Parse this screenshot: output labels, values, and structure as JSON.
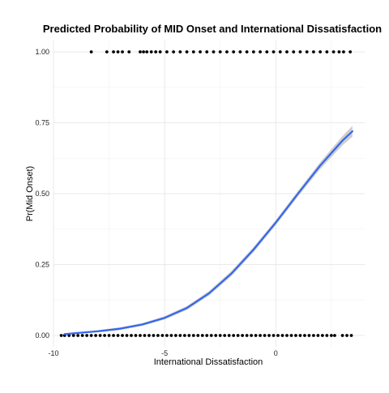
{
  "chart_data": {
    "type": "scatter",
    "title": "Predicted Probability of MID Onset and International Dissatisfaction",
    "xlabel": "International Dissatisfaction",
    "ylabel": "Pr(Mid Onset)",
    "xlim": [
      -10,
      4
    ],
    "ylim": [
      -0.04,
      1.04
    ],
    "x_ticks": [
      -10,
      -5,
      0
    ],
    "x_tick_labels": [
      "-10",
      "-5",
      "0"
    ],
    "y_ticks": [
      0,
      0.25,
      0.5,
      0.75,
      1
    ],
    "y_tick_labels": [
      "0.00",
      "0.25",
      "0.50",
      "0.75",
      "1.00"
    ],
    "grid": true,
    "legend": "none",
    "series": [
      {
        "kind": "points",
        "color": "#000000",
        "y_value": 1,
        "x": [
          -8.3,
          -7.6,
          -7.3,
          -7.1,
          -6.9,
          -6.6,
          -6.1,
          -5.95,
          -5.8,
          -5.6,
          -5.4,
          -5.2,
          -4.9,
          -4.6,
          -4.3,
          -4.0,
          -3.7,
          -3.4,
          -3.1,
          -2.8,
          -2.5,
          -2.2,
          -1.9,
          -1.6,
          -1.3,
          -1.0,
          -0.7,
          -0.4,
          -0.1,
          0.2,
          0.5,
          0.8,
          1.1,
          1.4,
          1.7,
          2.0,
          2.3,
          2.6,
          2.85,
          3.05,
          3.35
        ]
      },
      {
        "kind": "points",
        "color": "#000000",
        "y_value": 0,
        "x": [
          -9.65,
          -9.5,
          -9.3,
          -9.1,
          -8.9,
          -8.7,
          -8.5,
          -8.3,
          -8.1,
          -7.9,
          -7.7,
          -7.5,
          -7.3,
          -7.1,
          -6.9,
          -6.7,
          -6.5,
          -6.3,
          -6.1,
          -5.9,
          -5.7,
          -5.5,
          -5.3,
          -5.1,
          -4.9,
          -4.7,
          -4.5,
          -4.3,
          -4.1,
          -3.9,
          -3.7,
          -3.5,
          -3.3,
          -3.1,
          -2.9,
          -2.7,
          -2.5,
          -2.3,
          -2.1,
          -1.9,
          -1.7,
          -1.5,
          -1.3,
          -1.1,
          -0.9,
          -0.7,
          -0.5,
          -0.3,
          -0.1,
          0.1,
          0.3,
          0.5,
          0.7,
          0.9,
          1.1,
          1.3,
          1.5,
          1.7,
          1.9,
          2.1,
          2.3,
          2.5,
          2.65,
          3.0,
          3.2,
          3.4
        ]
      },
      {
        "kind": "fitted-line",
        "color": "#3366ee",
        "band_color": "#bdbdbd",
        "x": [
          -9.5,
          -8,
          -7,
          -6,
          -5,
          -4,
          -3,
          -2,
          -1,
          0,
          1,
          2,
          3,
          3.45
        ],
        "y": [
          0.005,
          0.015,
          0.024,
          0.039,
          0.062,
          0.097,
          0.149,
          0.218,
          0.303,
          0.398,
          0.5,
          0.599,
          0.687,
          0.72
        ],
        "band_half_width": [
          0.003,
          0.004,
          0.005,
          0.005,
          0.006,
          0.007,
          0.008,
          0.009,
          0.009,
          0.009,
          0.01,
          0.012,
          0.016,
          0.019
        ]
      }
    ]
  }
}
